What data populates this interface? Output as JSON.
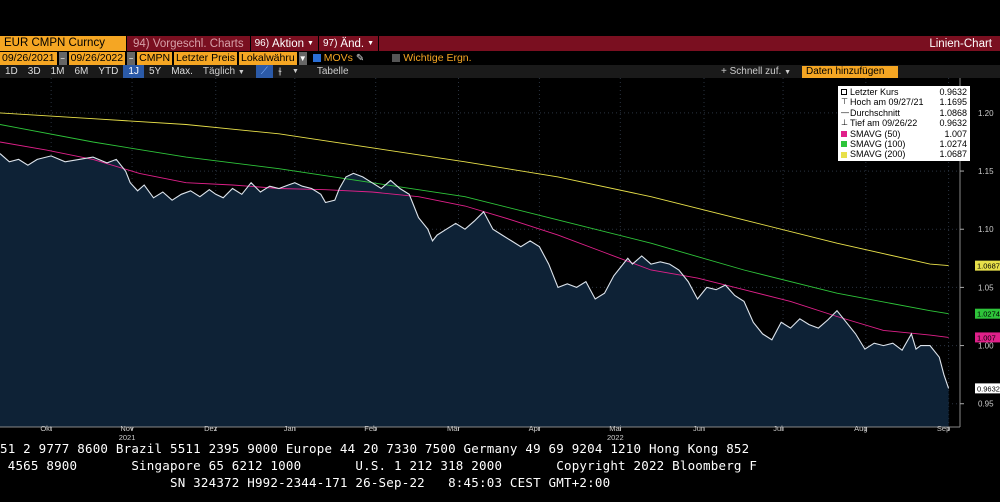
{
  "toolbar": {
    "security": "EUR CMPN Curncy",
    "menu_prefix": "94)",
    "menu_label": "Vorgeschl. Charts",
    "action_num": "96)",
    "action_label": "Aktion",
    "change_num": "97)",
    "change_label": "Änd.",
    "chart_type": "Linien-Chart"
  },
  "fields": {
    "start_date": "09/26/2021",
    "end_date": "09/26/2022",
    "source": "CMPN",
    "price_field": "Letzter Preis",
    "currency": "Lokalwähru",
    "movs_label": "MOVs",
    "events_label": "Wichtige Ergn."
  },
  "periods": [
    {
      "label": "1D",
      "active": false
    },
    {
      "label": "3D",
      "active": false
    },
    {
      "label": "1M",
      "active": false
    },
    {
      "label": "6M",
      "active": false
    },
    {
      "label": "YTD",
      "active": false
    },
    {
      "label": "1J",
      "active": true
    },
    {
      "label": "5Y",
      "active": false
    },
    {
      "label": "Max.",
      "active": false
    }
  ],
  "controls": {
    "frequency": "Täglich",
    "table": "Tabelle",
    "quick_add": "+ Schnell zuf.",
    "add_data": "Daten hinzufügen"
  },
  "legend": {
    "last_label": "Letzter Kurs",
    "last_value": "0.9632",
    "high_label": "Hoch am 09/27/21",
    "high_value": "1.1695",
    "avg_label": "Durchschnitt",
    "avg_value": "1.0868",
    "low_label": "Tief am 09/26/22",
    "low_value": "0.9632",
    "sma50_label": "SMAVG (50)",
    "sma50_value": "1.007",
    "sma100_label": "SMAVG (100)",
    "sma100_value": "1.0274",
    "sma200_label": "SMAVG (200)",
    "sma200_value": "1.0687"
  },
  "colors": {
    "price_fill": "#0e2236",
    "price_line": "#dde4ec",
    "sma50": "#e0208a",
    "sma100": "#2ec43a",
    "sma200": "#e8e04a",
    "accent_orange": "#f5a623",
    "title_bar": "#7a0f20"
  },
  "chart_data": {
    "type": "line",
    "ylim": [
      0.93,
      1.23
    ],
    "yticks": [
      "1.20",
      "1.15",
      "1.10",
      "1.05",
      "1.00",
      "0.95"
    ],
    "month_ticks": [
      {
        "label": "Okt",
        "t": 0.055
      },
      {
        "label": "Nov",
        "t": 0.142
      },
      {
        "label": "Dez",
        "t": 0.232
      },
      {
        "label": "Jan",
        "t": 0.317
      },
      {
        "label": "Feb",
        "t": 0.404
      },
      {
        "label": "Mär",
        "t": 0.493
      },
      {
        "label": "Apr",
        "t": 0.58
      },
      {
        "label": "Mai",
        "t": 0.667
      },
      {
        "label": "Jun",
        "t": 0.757
      },
      {
        "label": "Jul",
        "t": 0.842
      },
      {
        "label": "Aug",
        "t": 0.931
      },
      {
        "label": "Sep",
        "t": 1.02
      }
    ],
    "year_labels": [
      {
        "label": "2021",
        "t": 0.142
      },
      {
        "label": "2022",
        "t": 0.667
      }
    ],
    "value_tags": [
      {
        "text": "1.0687",
        "value": 1.0687,
        "color": "#e8e04a"
      },
      {
        "text": "1.0274",
        "value": 1.0274,
        "color": "#2ec43a"
      },
      {
        "text": "1.007",
        "value": 1.007,
        "color": "#e0208a"
      },
      {
        "text": "0.9632",
        "value": 0.9632,
        "color": "#ffffff"
      }
    ],
    "series": [
      {
        "name": "Letzter Kurs",
        "points": [
          [
            0,
            1.165
          ],
          [
            0.01,
            1.158
          ],
          [
            0.02,
            1.16
          ],
          [
            0.03,
            1.155
          ],
          [
            0.04,
            1.16
          ],
          [
            0.055,
            1.163
          ],
          [
            0.07,
            1.158
          ],
          [
            0.085,
            1.16
          ],
          [
            0.1,
            1.162
          ],
          [
            0.115,
            1.157
          ],
          [
            0.125,
            1.16
          ],
          [
            0.135,
            1.15
          ],
          [
            0.14,
            1.14
          ],
          [
            0.148,
            1.133
          ],
          [
            0.155,
            1.138
          ],
          [
            0.165,
            1.127
          ],
          [
            0.175,
            1.132
          ],
          [
            0.185,
            1.125
          ],
          [
            0.195,
            1.13
          ],
          [
            0.205,
            1.133
          ],
          [
            0.215,
            1.128
          ],
          [
            0.225,
            1.134
          ],
          [
            0.232,
            1.13
          ],
          [
            0.24,
            1.127
          ],
          [
            0.25,
            1.135
          ],
          [
            0.26,
            1.13
          ],
          [
            0.27,
            1.14
          ],
          [
            0.28,
            1.132
          ],
          [
            0.29,
            1.137
          ],
          [
            0.3,
            1.135
          ],
          [
            0.31,
            1.138
          ],
          [
            0.317,
            1.14
          ],
          [
            0.325,
            1.137
          ],
          [
            0.335,
            1.135
          ],
          [
            0.345,
            1.13
          ],
          [
            0.35,
            1.123
          ],
          [
            0.36,
            1.125
          ],
          [
            0.365,
            1.135
          ],
          [
            0.372,
            1.145
          ],
          [
            0.38,
            1.148
          ],
          [
            0.39,
            1.145
          ],
          [
            0.4,
            1.14
          ],
          [
            0.41,
            1.135
          ],
          [
            0.42,
            1.142
          ],
          [
            0.43,
            1.135
          ],
          [
            0.44,
            1.13
          ],
          [
            0.445,
            1.12
          ],
          [
            0.45,
            1.11
          ],
          [
            0.46,
            1.1
          ],
          [
            0.465,
            1.09
          ],
          [
            0.47,
            1.095
          ],
          [
            0.48,
            1.1
          ],
          [
            0.49,
            1.105
          ],
          [
            0.5,
            1.1
          ],
          [
            0.51,
            1.107
          ],
          [
            0.52,
            1.115
          ],
          [
            0.53,
            1.1
          ],
          [
            0.54,
            1.095
          ],
          [
            0.55,
            1.09
          ],
          [
            0.56,
            1.085
          ],
          [
            0.57,
            1.09
          ],
          [
            0.58,
            1.085
          ],
          [
            0.59,
            1.07
          ],
          [
            0.6,
            1.05
          ],
          [
            0.61,
            1.053
          ],
          [
            0.62,
            1.05
          ],
          [
            0.63,
            1.055
          ],
          [
            0.64,
            1.04
          ],
          [
            0.65,
            1.045
          ],
          [
            0.66,
            1.06
          ],
          [
            0.67,
            1.07
          ],
          [
            0.675,
            1.075
          ],
          [
            0.68,
            1.07
          ],
          [
            0.69,
            1.077
          ],
          [
            0.7,
            1.07
          ],
          [
            0.71,
            1.072
          ],
          [
            0.72,
            1.07
          ],
          [
            0.73,
            1.065
          ],
          [
            0.74,
            1.055
          ],
          [
            0.75,
            1.04
          ],
          [
            0.76,
            1.05
          ],
          [
            0.77,
            1.048
          ],
          [
            0.78,
            1.052
          ],
          [
            0.79,
            1.043
          ],
          [
            0.8,
            1.038
          ],
          [
            0.81,
            1.02
          ],
          [
            0.82,
            1.01
          ],
          [
            0.83,
            1.005
          ],
          [
            0.84,
            1.02
          ],
          [
            0.85,
            1.015
          ],
          [
            0.86,
            1.023
          ],
          [
            0.87,
            1.018
          ],
          [
            0.88,
            1.015
          ],
          [
            0.89,
            1.022
          ],
          [
            0.9,
            1.03
          ],
          [
            0.91,
            1.02
          ],
          [
            0.92,
            1.01
          ],
          [
            0.93,
            0.997
          ],
          [
            0.94,
            1.002
          ],
          [
            0.95,
            1.0
          ],
          [
            0.96,
            1.002
          ],
          [
            0.97,
            0.996
          ],
          [
            0.98,
            1.01
          ],
          [
            0.985,
            0.997
          ],
          [
            0.99,
            1.0
          ],
          [
            1.0,
            1.0
          ],
          [
            1.01,
            0.99
          ],
          [
            1.015,
            0.975
          ],
          [
            1.02,
            0.9632
          ]
        ]
      },
      {
        "name": "SMAVG (50)",
        "points": [
          [
            0,
            1.175
          ],
          [
            0.05,
            1.168
          ],
          [
            0.1,
            1.16
          ],
          [
            0.15,
            1.148
          ],
          [
            0.2,
            1.14
          ],
          [
            0.25,
            1.138
          ],
          [
            0.3,
            1.135
          ],
          [
            0.35,
            1.134
          ],
          [
            0.4,
            1.132
          ],
          [
            0.45,
            1.128
          ],
          [
            0.5,
            1.12
          ],
          [
            0.55,
            1.108
          ],
          [
            0.6,
            1.095
          ],
          [
            0.65,
            1.08
          ],
          [
            0.7,
            1.065
          ],
          [
            0.75,
            1.058
          ],
          [
            0.8,
            1.048
          ],
          [
            0.85,
            1.038
          ],
          [
            0.9,
            1.025
          ],
          [
            0.95,
            1.013
          ],
          [
            1.0,
            1.009
          ],
          [
            1.02,
            1.007
          ]
        ]
      },
      {
        "name": "SMAVG (100)",
        "points": [
          [
            0,
            1.19
          ],
          [
            0.1,
            1.175
          ],
          [
            0.2,
            1.162
          ],
          [
            0.3,
            1.152
          ],
          [
            0.4,
            1.14
          ],
          [
            0.5,
            1.128
          ],
          [
            0.6,
            1.108
          ],
          [
            0.7,
            1.088
          ],
          [
            0.8,
            1.065
          ],
          [
            0.9,
            1.045
          ],
          [
            1.0,
            1.03
          ],
          [
            1.02,
            1.0274
          ]
        ]
      },
      {
        "name": "SMAVG (200)",
        "points": [
          [
            0,
            1.2
          ],
          [
            0.1,
            1.195
          ],
          [
            0.2,
            1.19
          ],
          [
            0.3,
            1.182
          ],
          [
            0.4,
            1.17
          ],
          [
            0.5,
            1.158
          ],
          [
            0.6,
            1.145
          ],
          [
            0.7,
            1.128
          ],
          [
            0.8,
            1.108
          ],
          [
            0.9,
            1.088
          ],
          [
            1.0,
            1.07
          ],
          [
            1.02,
            1.0687
          ]
        ]
      }
    ]
  },
  "ticker": {
    "line1": "51 2 9777 8600 Brazil 5511 2395 9000 Europe 44 20 7330 7500 Germany 49 69 9204 1210 Hong Kong 852",
    "line2": " 4565 8900       Singapore 65 6212 1000       U.S. 1 212 318 2000       Copyright 2022 Bloomberg F",
    "line3": "                      SN 324372 H992-2344-171 26-Sep-22   8:45:03 CEST GMT+2:00"
  }
}
